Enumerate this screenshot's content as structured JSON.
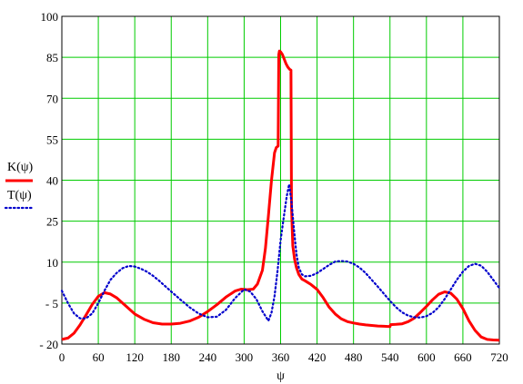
{
  "chart_data": {
    "type": "line",
    "xlabel": "ψ",
    "ylabel": "",
    "xlim": [
      0,
      720
    ],
    "ylim": [
      -20,
      100
    ],
    "xticks": [
      0,
      60,
      120,
      180,
      240,
      300,
      360,
      420,
      480,
      540,
      600,
      660,
      720
    ],
    "yticks": [
      -20,
      -5,
      10,
      25,
      40,
      55,
      70,
      85,
      100
    ],
    "xtick_labels": [
      "0",
      "60",
      "120",
      "180",
      "240",
      "300",
      "360",
      "420",
      "480",
      "540",
      "600",
      "660",
      "720"
    ],
    "ytick_labels": [
      "- 20",
      "- 5",
      "10",
      "25",
      "40",
      "55",
      "70",
      "85",
      "100"
    ],
    "grid": true,
    "grid_color": "#00cc00",
    "legend_position": "left",
    "series": [
      {
        "name": "K(ψ)",
        "color": "#ff0000",
        "style": "solid",
        "x": [
          0,
          10,
          20,
          30,
          40,
          50,
          60,
          70,
          80,
          90,
          100,
          110,
          120,
          135,
          150,
          165,
          180,
          195,
          210,
          225,
          240,
          255,
          270,
          285,
          295,
          305,
          315,
          322,
          330,
          335,
          340,
          345,
          350,
          353,
          356,
          357,
          358,
          359,
          360,
          363,
          366,
          369,
          372,
          375,
          377,
          378,
          380,
          383,
          386,
          390,
          395,
          400,
          405,
          410,
          420,
          430,
          440,
          450,
          460,
          470,
          480,
          490,
          500,
          510,
          520,
          530,
          540,
          541,
          550,
          560,
          570,
          580,
          590,
          600,
          610,
          620,
          630,
          640,
          650,
          660,
          670,
          680,
          690,
          700,
          710,
          720
        ],
        "y": [
          -18.3,
          -17.8,
          -16.0,
          -13.0,
          -9.3,
          -5.5,
          -2.5,
          -1.2,
          -1.7,
          -3.0,
          -5.0,
          -7.0,
          -9.0,
          -10.9,
          -12.2,
          -12.7,
          -12.7,
          -12.4,
          -11.6,
          -10.2,
          -8.1,
          -5.6,
          -2.8,
          -0.6,
          0.1,
          -0.1,
          0.1,
          2.0,
          7.0,
          15.0,
          27.0,
          40.0,
          50.0,
          52.0,
          52.5,
          86.0,
          87.3,
          87.2,
          87.0,
          86.0,
          84.3,
          82.6,
          81.4,
          80.6,
          80.3,
          30.0,
          16.0,
          11.0,
          8.0,
          5.5,
          3.8,
          3.2,
          2.5,
          1.8,
          0.0,
          -3.0,
          -6.5,
          -9.0,
          -10.8,
          -11.8,
          -12.3,
          -12.7,
          -13.0,
          -13.2,
          -13.4,
          -13.5,
          -13.6,
          -12.9,
          -12.8,
          -12.6,
          -11.8,
          -10.5,
          -8.4,
          -6.2,
          -3.8,
          -1.8,
          -0.9,
          -1.4,
          -3.5,
          -7.0,
          -11.5,
          -15.0,
          -17.4,
          -18.3,
          -18.5,
          -18.6
        ],
        "label_x": "K(ψ)"
      },
      {
        "name": "T(ψ)",
        "color": "#0000cc",
        "style": "dotted",
        "x": [
          0,
          10,
          20,
          30,
          40,
          50,
          60,
          70,
          80,
          90,
          100,
          110,
          120,
          130,
          140,
          150,
          160,
          170,
          180,
          195,
          210,
          225,
          240,
          255,
          270,
          285,
          300,
          310,
          320,
          330,
          340,
          345,
          350,
          355,
          360,
          365,
          370,
          374,
          378,
          382,
          386,
          390,
          395,
          400,
          410,
          420,
          430,
          440,
          450,
          460,
          470,
          480,
          490,
          500,
          510,
          520,
          530,
          540,
          550,
          560,
          570,
          580,
          590,
          600,
          610,
          620,
          630,
          640,
          650,
          660,
          670,
          680,
          690,
          700,
          710,
          720
        ],
        "y": [
          -0.5,
          -5.0,
          -8.8,
          -10.6,
          -10.6,
          -8.8,
          -5.0,
          -0.5,
          3.5,
          6.0,
          7.8,
          8.6,
          8.4,
          7.6,
          6.5,
          5.0,
          3.2,
          1.2,
          -0.8,
          -3.7,
          -6.5,
          -8.8,
          -10.2,
          -10.0,
          -7.5,
          -3.2,
          0.0,
          -0.8,
          -3.5,
          -8.0,
          -11.5,
          -8.5,
          -2.5,
          7.0,
          18.0,
          26.0,
          34.0,
          38.5,
          32.0,
          22.0,
          13.0,
          8.0,
          5.5,
          4.8,
          5.0,
          6.0,
          7.5,
          9.0,
          10.2,
          10.4,
          10.2,
          9.4,
          8.0,
          6.0,
          3.5,
          1.0,
          -1.6,
          -4.2,
          -6.5,
          -8.4,
          -9.6,
          -10.2,
          -10.3,
          -9.8,
          -8.6,
          -6.5,
          -3.5,
          0.0,
          3.5,
          6.5,
          8.6,
          9.4,
          8.7,
          6.5,
          3.5,
          0.5
        ]
      }
    ]
  }
}
